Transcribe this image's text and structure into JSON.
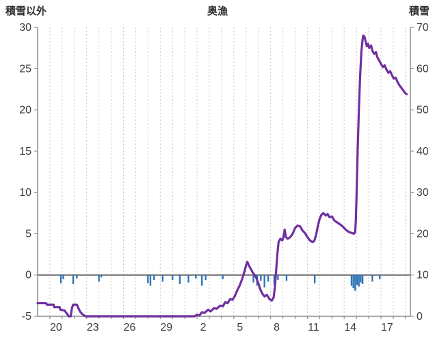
{
  "chart_data": {
    "type": "line",
    "title": "奥漁",
    "left_axis": {
      "label": "積雪以外",
      "min": -5,
      "max": 30,
      "ticks": [
        30,
        25,
        20,
        15,
        10,
        5,
        0,
        -5
      ]
    },
    "right_axis": {
      "label": "積雪",
      "min": 0,
      "max": 70,
      "ticks": [
        70,
        60,
        50,
        40,
        30,
        20,
        10,
        0
      ]
    },
    "x_axis": {
      "tick_labels": [
        "20",
        "23",
        "26",
        "29",
        "2",
        "5",
        "8",
        "11",
        "14",
        "17"
      ],
      "tick_positions": [
        1.5,
        4.5,
        7.5,
        10.5,
        13.5,
        16.5,
        19.5,
        22.5,
        25.5,
        28.5
      ],
      "range": [
        0,
        30.4
      ]
    },
    "grid": {
      "vertical": true,
      "horizontal": false
    },
    "zero_line": 0,
    "legend": "none",
    "colors": {
      "line": "#7030A0",
      "bars": "#2E75B6",
      "axis": "#8c8c8c",
      "grid": "#c9c9c9",
      "text": "#3c3c3c"
    },
    "series": [
      {
        "name": "snow-depth-line",
        "type": "line",
        "color": "#7030A0",
        "points": [
          [
            0,
            -3.4
          ],
          [
            0.7,
            -3.4
          ],
          [
            0.75,
            -3.6
          ],
          [
            1.3,
            -3.6
          ],
          [
            1.35,
            -3.9
          ],
          [
            1.8,
            -3.9
          ],
          [
            1.85,
            -4.2
          ],
          [
            2.2,
            -4.3
          ],
          [
            2.4,
            -4.7
          ],
          [
            2.55,
            -5.0
          ],
          [
            2.7,
            -5.0
          ],
          [
            2.8,
            -4.0
          ],
          [
            2.9,
            -3.6
          ],
          [
            3.2,
            -3.6
          ],
          [
            3.35,
            -4.1
          ],
          [
            3.5,
            -4.5
          ],
          [
            3.7,
            -4.8
          ],
          [
            3.9,
            -5.0
          ],
          [
            12.8,
            -5.0
          ],
          [
            13.0,
            -4.8
          ],
          [
            13.2,
            -4.9
          ],
          [
            13.4,
            -4.5
          ],
          [
            13.6,
            -4.6
          ],
          [
            13.9,
            -4.2
          ],
          [
            14.1,
            -4.4
          ],
          [
            14.4,
            -4.0
          ],
          [
            14.6,
            -4.1
          ],
          [
            14.9,
            -3.7
          ],
          [
            15.1,
            -3.8
          ],
          [
            15.3,
            -3.3
          ],
          [
            15.5,
            -3.4
          ],
          [
            15.7,
            -2.9
          ],
          [
            15.9,
            -3.0
          ],
          [
            16.1,
            -2.5
          ],
          [
            16.3,
            -1.8
          ],
          [
            16.5,
            -1.2
          ],
          [
            16.7,
            -0.4
          ],
          [
            16.9,
            0.6
          ],
          [
            17.0,
            1.2
          ],
          [
            17.1,
            1.6
          ],
          [
            17.25,
            1.1
          ],
          [
            17.4,
            0.7
          ],
          [
            17.55,
            0.3
          ],
          [
            17.7,
            0.0
          ],
          [
            17.85,
            -0.4
          ],
          [
            18.0,
            -1.0
          ],
          [
            18.15,
            -1.7
          ],
          [
            18.3,
            -2.2
          ],
          [
            18.5,
            -2.6
          ],
          [
            18.7,
            -2.4
          ],
          [
            18.9,
            -2.9
          ],
          [
            19.1,
            -3.1
          ],
          [
            19.25,
            -2.7
          ],
          [
            19.35,
            -1.5
          ],
          [
            19.45,
            0.5
          ],
          [
            19.55,
            2.5
          ],
          [
            19.65,
            4.0
          ],
          [
            19.8,
            4.4
          ],
          [
            19.95,
            4.2
          ],
          [
            20.05,
            4.6
          ],
          [
            20.15,
            5.5
          ],
          [
            20.25,
            4.6
          ],
          [
            20.4,
            4.4
          ],
          [
            20.6,
            4.6
          ],
          [
            20.8,
            5.0
          ],
          [
            21.0,
            5.7
          ],
          [
            21.2,
            6.0
          ],
          [
            21.4,
            5.9
          ],
          [
            21.6,
            5.4
          ],
          [
            21.8,
            5.1
          ],
          [
            22.0,
            4.6
          ],
          [
            22.2,
            4.2
          ],
          [
            22.4,
            4.0
          ],
          [
            22.55,
            4.1
          ],
          [
            22.7,
            4.8
          ],
          [
            22.85,
            5.9
          ],
          [
            23.0,
            6.8
          ],
          [
            23.15,
            7.3
          ],
          [
            23.3,
            7.5
          ],
          [
            23.5,
            7.2
          ],
          [
            23.65,
            7.4
          ],
          [
            23.8,
            7.0
          ],
          [
            24.0,
            7.1
          ],
          [
            24.2,
            6.6
          ],
          [
            24.4,
            6.4
          ],
          [
            24.6,
            6.2
          ],
          [
            24.8,
            6.0
          ],
          [
            25.0,
            5.7
          ],
          [
            25.2,
            5.4
          ],
          [
            25.4,
            5.2
          ],
          [
            25.6,
            5.1
          ],
          [
            25.8,
            5.0
          ],
          [
            25.9,
            5.2
          ],
          [
            25.95,
            6.5
          ],
          [
            26.0,
            9.0
          ],
          [
            26.05,
            12.0
          ],
          [
            26.1,
            15.0
          ],
          [
            26.2,
            20.0
          ],
          [
            26.3,
            24.0
          ],
          [
            26.4,
            27.0
          ],
          [
            26.5,
            28.5
          ],
          [
            26.55,
            29.0
          ],
          [
            26.65,
            28.9
          ],
          [
            26.75,
            28.3
          ],
          [
            26.85,
            27.7
          ],
          [
            26.95,
            28.0
          ],
          [
            27.05,
            27.5
          ],
          [
            27.2,
            27.8
          ],
          [
            27.3,
            27.2
          ],
          [
            27.45,
            26.8
          ],
          [
            27.6,
            27.0
          ],
          [
            27.7,
            26.4
          ],
          [
            27.85,
            26.0
          ],
          [
            28.0,
            25.6
          ],
          [
            28.15,
            25.2
          ],
          [
            28.3,
            25.4
          ],
          [
            28.45,
            24.9
          ],
          [
            28.6,
            24.5
          ],
          [
            28.75,
            24.7
          ],
          [
            28.9,
            24.2
          ],
          [
            29.05,
            23.8
          ],
          [
            29.2,
            23.9
          ],
          [
            29.35,
            23.4
          ],
          [
            29.5,
            23.0
          ],
          [
            29.65,
            22.7
          ],
          [
            29.8,
            22.4
          ],
          [
            29.95,
            22.1
          ],
          [
            30.1,
            21.9
          ]
        ]
      },
      {
        "name": "precipitation-ticks",
        "type": "bar",
        "color": "#2E75B6",
        "baseline": 0,
        "bars": [
          [
            1.9,
            -1.0
          ],
          [
            2.1,
            -0.5
          ],
          [
            2.9,
            -1.1
          ],
          [
            3.2,
            -0.4
          ],
          [
            5.0,
            -0.8
          ],
          [
            5.2,
            -0.3
          ],
          [
            9.0,
            -1.0
          ],
          [
            9.2,
            -1.3
          ],
          [
            9.5,
            -0.6
          ],
          [
            10.2,
            -0.8
          ],
          [
            11.0,
            -0.6
          ],
          [
            11.6,
            -1.1
          ],
          [
            12.3,
            -0.9
          ],
          [
            12.9,
            -0.4
          ],
          [
            13.4,
            -1.3
          ],
          [
            13.7,
            -0.6
          ],
          [
            15.1,
            -0.5
          ],
          [
            17.6,
            -0.9
          ],
          [
            17.9,
            -1.3
          ],
          [
            18.2,
            -0.7
          ],
          [
            18.5,
            -1.5
          ],
          [
            18.8,
            -0.8
          ],
          [
            19.3,
            -1.2
          ],
          [
            19.6,
            -0.6
          ],
          [
            20.3,
            -0.7
          ],
          [
            22.6,
            -1.0
          ],
          [
            25.6,
            -1.3
          ],
          [
            25.75,
            -1.6
          ],
          [
            25.9,
            -1.9
          ],
          [
            26.05,
            -1.2
          ],
          [
            26.2,
            -1.4
          ],
          [
            26.35,
            -0.9
          ],
          [
            26.5,
            -1.1
          ],
          [
            27.3,
            -0.8
          ],
          [
            27.9,
            -0.5
          ]
        ]
      }
    ]
  }
}
